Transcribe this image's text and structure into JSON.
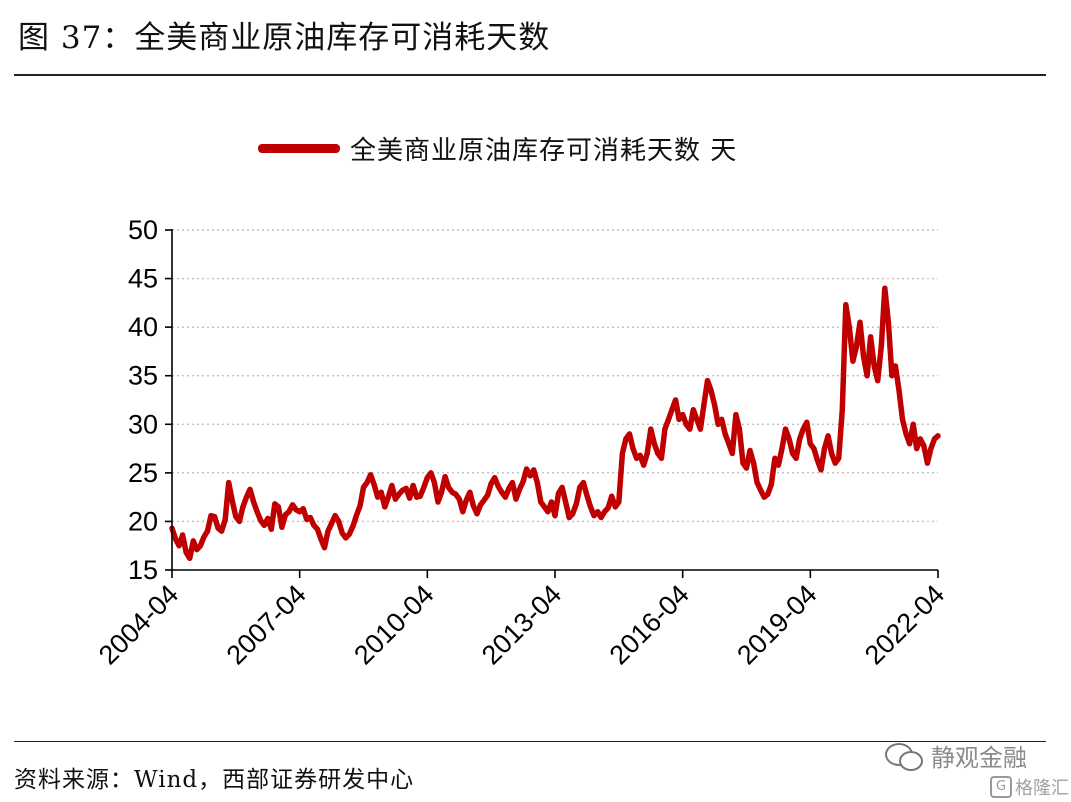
{
  "title": "图 37：全美商业原油库存可消耗天数",
  "source_note": "资料来源：Wind，西部证券研发中心",
  "watermark": {
    "text": "静观金融",
    "icon": "wechat-icon"
  },
  "publisher": {
    "text": "格隆汇",
    "icon_glyph": "G"
  },
  "colors": {
    "series": "#c00000",
    "grid": "#bfbfbf",
    "axis": "#000000"
  },
  "chart_data": {
    "type": "line",
    "title": "",
    "xlabel": "",
    "ylabel": "",
    "ylim": [
      15,
      50
    ],
    "xlim": [
      "2004-04",
      "2022-04"
    ],
    "yticks": [
      15,
      20,
      25,
      30,
      35,
      40,
      45,
      50
    ],
    "xticks": [
      "2004-04",
      "2007-04",
      "2010-04",
      "2013-04",
      "2016-04",
      "2019-04",
      "2022-04"
    ],
    "grid": "horizontal dotted",
    "legend": "top-center",
    "series": [
      {
        "name": "全美商业原油库存可消耗天数 天",
        "color": "#c00000",
        "x": [
          "2004-04",
          "2004-05",
          "2004-06",
          "2004-07",
          "2004-08",
          "2004-09",
          "2004-10",
          "2004-11",
          "2004-12",
          "2005-01",
          "2005-02",
          "2005-03",
          "2005-04",
          "2005-05",
          "2005-06",
          "2005-07",
          "2005-08",
          "2005-09",
          "2005-10",
          "2005-11",
          "2005-12",
          "2006-01",
          "2006-02",
          "2006-03",
          "2006-04",
          "2006-05",
          "2006-06",
          "2006-07",
          "2006-08",
          "2006-09",
          "2006-10",
          "2006-11",
          "2006-12",
          "2007-01",
          "2007-02",
          "2007-03",
          "2007-04",
          "2007-05",
          "2007-06",
          "2007-07",
          "2007-08",
          "2007-09",
          "2007-10",
          "2007-11",
          "2007-12",
          "2008-01",
          "2008-02",
          "2008-03",
          "2008-04",
          "2008-05",
          "2008-06",
          "2008-07",
          "2008-08",
          "2008-09",
          "2008-10",
          "2008-11",
          "2008-12",
          "2009-01",
          "2009-02",
          "2009-03",
          "2009-04",
          "2009-05",
          "2009-06",
          "2009-07",
          "2009-08",
          "2009-09",
          "2009-10",
          "2009-11",
          "2009-12",
          "2010-01",
          "2010-02",
          "2010-03",
          "2010-04",
          "2010-05",
          "2010-06",
          "2010-07",
          "2010-08",
          "2010-09",
          "2010-10",
          "2010-11",
          "2010-12",
          "2011-01",
          "2011-02",
          "2011-03",
          "2011-04",
          "2011-05",
          "2011-06",
          "2011-07",
          "2011-08",
          "2011-09",
          "2011-10",
          "2011-11",
          "2011-12",
          "2012-01",
          "2012-02",
          "2012-03",
          "2012-04",
          "2012-05",
          "2012-06",
          "2012-07",
          "2012-08",
          "2012-09",
          "2012-10",
          "2012-11",
          "2012-12",
          "2013-01",
          "2013-02",
          "2013-03",
          "2013-04",
          "2013-05",
          "2013-06",
          "2013-07",
          "2013-08",
          "2013-09",
          "2013-10",
          "2013-11",
          "2013-12",
          "2014-01",
          "2014-02",
          "2014-03",
          "2014-04",
          "2014-05",
          "2014-06",
          "2014-07",
          "2014-08",
          "2014-09",
          "2014-10",
          "2014-11",
          "2014-12",
          "2015-01",
          "2015-02",
          "2015-03",
          "2015-04",
          "2015-05",
          "2015-06",
          "2015-07",
          "2015-08",
          "2015-09",
          "2015-10",
          "2015-11",
          "2015-12",
          "2016-01",
          "2016-02",
          "2016-03",
          "2016-04",
          "2016-05",
          "2016-06",
          "2016-07",
          "2016-08",
          "2016-09",
          "2016-10",
          "2016-11",
          "2016-12",
          "2017-01",
          "2017-02",
          "2017-03",
          "2017-04",
          "2017-05",
          "2017-06",
          "2017-07",
          "2017-08",
          "2017-09",
          "2017-10",
          "2017-11",
          "2017-12",
          "2018-01",
          "2018-02",
          "2018-03",
          "2018-04",
          "2018-05",
          "2018-06",
          "2018-07",
          "2018-08",
          "2018-09",
          "2018-10",
          "2018-11",
          "2018-12",
          "2019-01",
          "2019-02",
          "2019-03",
          "2019-04",
          "2019-05",
          "2019-06",
          "2019-07",
          "2019-08",
          "2019-09",
          "2019-10",
          "2019-11",
          "2019-12",
          "2020-01",
          "2020-02",
          "2020-03",
          "2020-04",
          "2020-05",
          "2020-06",
          "2020-07",
          "2020-08",
          "2020-09",
          "2020-10",
          "2020-11",
          "2020-12",
          "2021-01",
          "2021-02",
          "2021-03",
          "2021-04",
          "2021-05",
          "2021-06",
          "2021-07",
          "2021-08",
          "2021-09",
          "2021-10",
          "2021-11",
          "2021-12",
          "2022-01",
          "2022-02",
          "2022-03",
          "2022-04"
        ],
        "values": [
          19.3,
          18.2,
          17.5,
          18.6,
          16.8,
          16.2,
          18.0,
          17.1,
          17.5,
          18.4,
          19.0,
          20.6,
          20.5,
          19.3,
          19.0,
          20.2,
          24.0,
          22.1,
          20.5,
          20.0,
          21.5,
          22.5,
          23.3,
          22.0,
          21.0,
          20.1,
          19.6,
          20.3,
          19.2,
          21.8,
          21.5,
          19.4,
          20.7,
          21.0,
          21.7,
          21.2,
          21.0,
          21.3,
          20.2,
          20.4,
          19.6,
          19.2,
          18.2,
          17.3,
          19.0,
          19.8,
          20.6,
          20.0,
          18.8,
          18.3,
          18.7,
          19.5,
          20.6,
          21.6,
          23.5,
          24.0,
          24.8,
          23.8,
          22.5,
          23.0,
          21.5,
          22.5,
          23.7,
          22.3,
          22.8,
          23.2,
          23.4,
          22.4,
          23.7,
          22.5,
          22.6,
          23.5,
          24.5,
          25.0,
          24.0,
          22.0,
          23.0,
          24.6,
          23.5,
          23.0,
          22.8,
          22.3,
          21.0,
          22.2,
          23.0,
          21.6,
          20.8,
          21.7,
          22.2,
          22.7,
          23.9,
          24.5,
          23.6,
          23.0,
          22.5,
          23.4,
          24.0,
          22.3,
          23.3,
          24.1,
          25.4,
          24.7,
          25.3,
          24.0,
          22.0,
          21.5,
          21.0,
          22.0,
          20.6,
          22.9,
          23.5,
          22.0,
          20.4,
          20.8,
          21.8,
          23.5,
          24.0,
          22.7,
          21.5,
          20.6,
          21.0,
          20.4,
          21.0,
          21.4,
          22.6,
          21.5,
          22.0,
          27.0,
          28.5,
          29.0,
          27.5,
          26.5,
          26.8,
          25.8,
          27.0,
          29.5,
          28.0,
          27.0,
          26.5,
          29.5,
          30.5,
          31.5,
          32.5,
          30.5,
          31.0,
          30.0,
          29.5,
          31.5,
          30.5,
          29.5,
          32.0,
          34.5,
          33.5,
          32.0,
          30.0,
          30.5,
          29.0,
          28.0,
          27.0,
          31.0,
          29.5,
          26.0,
          25.5,
          27.3,
          26.0,
          24.0,
          23.2,
          22.5,
          22.8,
          23.8,
          26.5,
          25.8,
          27.5,
          29.5,
          28.5,
          27.0,
          26.5,
          28.5,
          29.5,
          30.2,
          28.0,
          27.5,
          26.3,
          25.3,
          27.5,
          28.8,
          27.0,
          26.0,
          26.5,
          31.5,
          42.3,
          40.0,
          36.5,
          38.0,
          40.5,
          37.0,
          35.0,
          39.0,
          36.0,
          34.5,
          38.0,
          44.0,
          40.5,
          35.0,
          36.0,
          33.5,
          30.5,
          29.0,
          28.0,
          30.0,
          27.5,
          28.5,
          27.8,
          26.0,
          27.5,
          28.5,
          28.8
        ]
      }
    ]
  }
}
